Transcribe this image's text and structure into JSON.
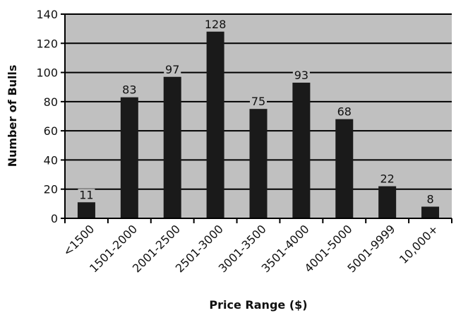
{
  "chart_data": {
    "type": "bar",
    "title": "",
    "xlabel": "Price Range ($)",
    "ylabel": "Number of Bulls",
    "categories": [
      "<1500",
      "1501-2000",
      "2001-2500",
      "2501-3000",
      "3001-3500",
      "3501-4000",
      "4001-5000",
      "5001-9999",
      "10,000+"
    ],
    "values": [
      11,
      83,
      97,
      128,
      75,
      93,
      68,
      22,
      8
    ],
    "ylim": [
      0,
      140
    ],
    "yticks": [
      0,
      20,
      40,
      60,
      80,
      100,
      120,
      140
    ],
    "grid": true,
    "legend": "none",
    "colors": {
      "plot_background": "#c0c0c0",
      "bar": "#1a1a1a",
      "grid": "#000000"
    }
  }
}
